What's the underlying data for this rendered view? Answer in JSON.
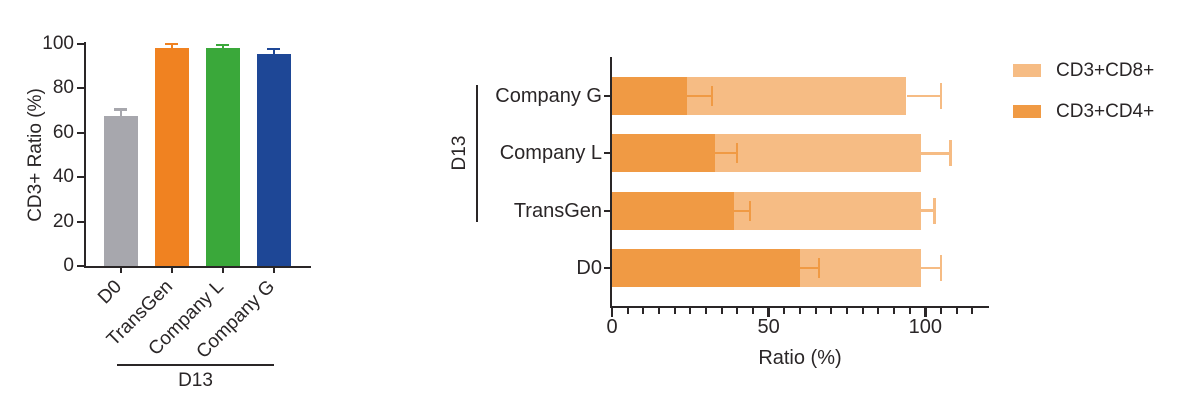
{
  "figure": {
    "background": "#ffffff",
    "text_color": "#2a2627"
  },
  "chart_data": [
    {
      "type": "bar",
      "title": "",
      "xlabel": "",
      "ylabel": "CD3+ Ratio (%)",
      "categories": [
        "D0",
        "TransGen",
        "Company L",
        "Company G"
      ],
      "values": [
        67.5,
        98,
        98,
        95.5
      ],
      "errors": [
        3,
        2,
        1.5,
        2.2
      ],
      "bar_colors": [
        "#a7a7ad",
        "#f08221",
        "#3aa83a",
        "#1e4796"
      ],
      "ylim": [
        0,
        100
      ],
      "yticks": [
        0,
        20,
        40,
        60,
        80,
        100
      ],
      "grid": false,
      "annotation": {
        "label": "D13",
        "covers": [
          "TransGen",
          "Company L",
          "Company G"
        ]
      }
    },
    {
      "type": "stacked-bar-horizontal",
      "title": "",
      "xlabel": "Ratio (%)",
      "ylabel": "",
      "categories": [
        "D0",
        "TransGen",
        "Company L",
        "Company G"
      ],
      "series": [
        {
          "name": "CD3+CD4+",
          "color": "#f09a44",
          "values": [
            60,
            39,
            33,
            24
          ],
          "errors": [
            6,
            5,
            7,
            8
          ]
        },
        {
          "name": "CD3+CD8+",
          "color": "#f6bc84",
          "values": [
            38.5,
            59.5,
            65.5,
            70
          ],
          "errors": [
            6.5,
            4.5,
            9.5,
            11
          ]
        }
      ],
      "xlim": [
        0,
        120
      ],
      "xticks_major": [
        0,
        50,
        100
      ],
      "xtick_minor_step": 5,
      "xtick_minor_max": 115,
      "grid": false,
      "legend_position": "right",
      "legend": [
        {
          "label": "CD3+CD8+",
          "color": "#f6bc84"
        },
        {
          "label": "CD3+CD4+",
          "color": "#f09a44"
        }
      ],
      "annotation": {
        "label": "D13",
        "covers": [
          "TransGen",
          "Company L",
          "Company G"
        ]
      }
    }
  ]
}
